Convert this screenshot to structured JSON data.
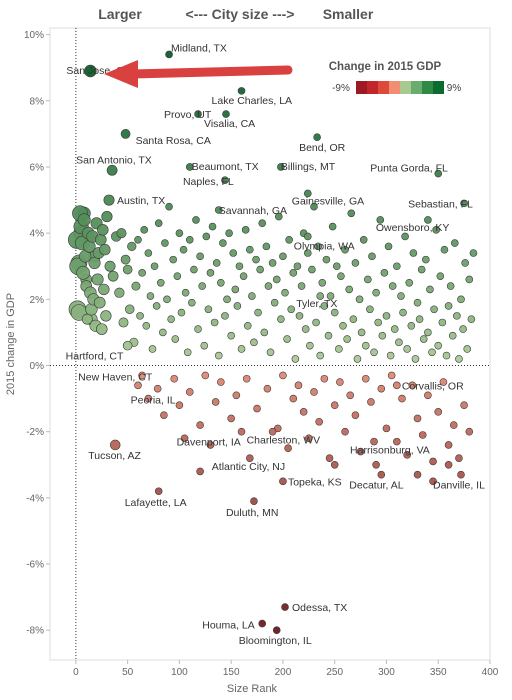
{
  "header": {
    "left": "Larger",
    "middle": "<---  City size  --->",
    "right": "Smaller"
  },
  "legend": {
    "title": "Change in 2015 GDP",
    "min_label": "-9%",
    "max_label": "9%",
    "colors": [
      "#9e1a22",
      "#c2262c",
      "#de4a3a",
      "#f08d72",
      "#a8c98f",
      "#6aac6e",
      "#2f8a46",
      "#0e6b2f"
    ]
  },
  "chart_data": {
    "type": "scatter",
    "xlabel": "Size Rank",
    "ylabel": "2015 change in GDP",
    "xlim": [
      -25,
      400
    ],
    "ylim": [
      -8.9,
      10.2
    ],
    "x_ticks": [
      0,
      50,
      100,
      150,
      200,
      250,
      300,
      350,
      400
    ],
    "x_tick_labels": [
      "0",
      "50",
      "100",
      "150",
      "200",
      "250",
      "300",
      "350",
      "400"
    ],
    "y_ticks": [
      10,
      8,
      6,
      4,
      2,
      0,
      -2,
      -4,
      -6,
      -8
    ],
    "y_tick_labels": [
      "10%",
      "8%",
      "6%",
      "4%",
      "2%",
      "0%",
      "-2%",
      "-4%",
      "-6%",
      "-8%"
    ],
    "reference_lines": {
      "x": 0,
      "y": 0
    },
    "labeled_points": [
      {
        "label": "San Jose, CA",
        "x": 14,
        "y": 8.9
      },
      {
        "label": "Midland, TX",
        "x": 90,
        "y": 9.4
      },
      {
        "label": "Lake Charles, LA",
        "x": 160,
        "y": 8.3
      },
      {
        "label": "Provo, UT",
        "x": 118,
        "y": 7.6
      },
      {
        "label": "Visalia, CA",
        "x": 145,
        "y": 7.6
      },
      {
        "label": "Santa Rosa, CA",
        "x": 48,
        "y": 7.0
      },
      {
        "label": "San Antonio, TX",
        "x": 35,
        "y": 5.9
      },
      {
        "label": "Beaumont, TX",
        "x": 110,
        "y": 6.0
      },
      {
        "label": "Bend, OR",
        "x": 233,
        "y": 6.9
      },
      {
        "label": "Billings, MT",
        "x": 198,
        "y": 6.0
      },
      {
        "label": "Punta Gorda, FL",
        "x": 350,
        "y": 5.8
      },
      {
        "label": "Naples, FL",
        "x": 144,
        "y": 5.6
      },
      {
        "label": "Gainesville, GA",
        "x": 224,
        "y": 5.2
      },
      {
        "label": "Austin, TX",
        "x": 32,
        "y": 5.0
      },
      {
        "label": "Sebastian, FL",
        "x": 375,
        "y": 4.9
      },
      {
        "label": "Savannah, GA",
        "x": 138,
        "y": 4.7
      },
      {
        "label": "Owensboro, KY",
        "x": 340,
        "y": 4.4
      },
      {
        "label": "Olympia, WA",
        "x": 224,
        "y": 3.9
      },
      {
        "label": "Tyler, TX",
        "x": 236,
        "y": 2.1
      },
      {
        "label": "Hartford, CT",
        "x": 50,
        "y": 0.6
      },
      {
        "label": "New Haven, CT",
        "x": 64,
        "y": -0.3
      },
      {
        "label": "Corvallis, OR",
        "x": 310,
        "y": -0.6
      },
      {
        "label": "Peoria, IL",
        "x": 79,
        "y": -0.7
      },
      {
        "label": "Davenport, IA",
        "x": 105,
        "y": -2.2
      },
      {
        "label": "Charleston, WV",
        "x": 190,
        "y": -2.0
      },
      {
        "label": "Harrisonburg, VA",
        "x": 288,
        "y": -2.3
      },
      {
        "label": "Tucson, AZ",
        "x": 38,
        "y": -2.4
      },
      {
        "label": "Atlantic City, NJ",
        "x": 168,
        "y": -2.8
      },
      {
        "label": "Topeka, KS",
        "x": 200,
        "y": -3.5
      },
      {
        "label": "Decatur, AL",
        "x": 295,
        "y": -3.3
      },
      {
        "label": "Danville, IL",
        "x": 372,
        "y": -3.3
      },
      {
        "label": "Lafayette, LA",
        "x": 80,
        "y": -3.8
      },
      {
        "label": "Duluth, MN",
        "x": 172,
        "y": -4.1
      },
      {
        "label": "Odessa, TX",
        "x": 202,
        "y": -7.3
      },
      {
        "label": "Houma, LA",
        "x": 180,
        "y": -7.8
      },
      {
        "label": "Bloomington, IL",
        "x": 194,
        "y": -8.0
      }
    ],
    "other_points": [
      [
        1,
        3.8
      ],
      [
        2,
        3.0
      ],
      [
        3,
        1.6
      ],
      [
        4,
        4.6
      ],
      [
        5,
        4.2
      ],
      [
        6,
        3.7
      ],
      [
        7,
        2.8
      ],
      [
        8,
        4.4
      ],
      [
        9,
        3.3
      ],
      [
        10,
        2.4
      ],
      [
        11,
        1.4
      ],
      [
        12,
        4.0
      ],
      [
        13,
        3.6
      ],
      [
        14,
        2.2
      ],
      [
        15,
        1.7
      ],
      [
        16,
        3.9
      ],
      [
        17,
        2.0
      ],
      [
        18,
        3.1
      ],
      [
        19,
        1.2
      ],
      [
        20,
        4.3
      ],
      [
        21,
        2.6
      ],
      [
        22,
        3.4
      ],
      [
        23,
        1.9
      ],
      [
        24,
        3.8
      ],
      [
        25,
        1.1
      ],
      [
        26,
        4.1
      ],
      [
        27,
        2.3
      ],
      [
        28,
        3.5
      ],
      [
        29,
        1.5
      ],
      [
        30,
        4.5
      ],
      [
        33,
        3.0
      ],
      [
        36,
        2.7
      ],
      [
        39,
        3.9
      ],
      [
        42,
        2.2
      ],
      [
        44,
        4.0
      ],
      [
        46,
        1.3
      ],
      [
        48,
        3.2
      ],
      [
        50,
        2.9
      ],
      [
        52,
        1.7
      ],
      [
        54,
        3.6
      ],
      [
        56,
        0.7
      ],
      [
        58,
        2.4
      ],
      [
        60,
        3.8
      ],
      [
        62,
        1.5
      ],
      [
        64,
        2.8
      ],
      [
        66,
        4.1
      ],
      [
        68,
        1.2
      ],
      [
        70,
        3.4
      ],
      [
        72,
        2.1
      ],
      [
        74,
        0.5
      ],
      [
        76,
        3.0
      ],
      [
        78,
        1.8
      ],
      [
        80,
        4.3
      ],
      [
        82,
        2.5
      ],
      [
        84,
        1.0
      ],
      [
        86,
        3.7
      ],
      [
        88,
        2.0
      ],
      [
        90,
        4.8
      ],
      [
        92,
        1.4
      ],
      [
        94,
        3.2
      ],
      [
        96,
        0.8
      ],
      [
        98,
        2.7
      ],
      [
        100,
        4.0
      ],
      [
        102,
        1.6
      ],
      [
        104,
        3.5
      ],
      [
        106,
        2.2
      ],
      [
        108,
        0.4
      ],
      [
        110,
        3.8
      ],
      [
        112,
        1.9
      ],
      [
        114,
        2.9
      ],
      [
        116,
        4.4
      ],
      [
        118,
        1.1
      ],
      [
        120,
        3.3
      ],
      [
        122,
        2.4
      ],
      [
        124,
        0.6
      ],
      [
        126,
        3.9
      ],
      [
        128,
        1.7
      ],
      [
        130,
        2.8
      ],
      [
        132,
        4.2
      ],
      [
        134,
        1.3
      ],
      [
        136,
        3.1
      ],
      [
        138,
        0.3
      ],
      [
        140,
        2.5
      ],
      [
        142,
        3.7
      ],
      [
        144,
        1.5
      ],
      [
        146,
        2.0
      ],
      [
        148,
        4.0
      ],
      [
        150,
        0.9
      ],
      [
        152,
        3.4
      ],
      [
        154,
        2.3
      ],
      [
        156,
        1.8
      ],
      [
        158,
        3.0
      ],
      [
        160,
        0.5
      ],
      [
        162,
        2.7
      ],
      [
        164,
        4.1
      ],
      [
        166,
        1.2
      ],
      [
        168,
        3.5
      ],
      [
        170,
        2.1
      ],
      [
        172,
        0.7
      ],
      [
        174,
        3.2
      ],
      [
        176,
        1.6
      ],
      [
        178,
        2.9
      ],
      [
        180,
        4.3
      ],
      [
        182,
        1.0
      ],
      [
        184,
        3.6
      ],
      [
        186,
        2.4
      ],
      [
        188,
        0.4
      ],
      [
        190,
        3.1
      ],
      [
        192,
        1.9
      ],
      [
        194,
        2.6
      ],
      [
        196,
        4.5
      ],
      [
        198,
        1.4
      ],
      [
        200,
        3.3
      ],
      [
        202,
        2.2
      ],
      [
        204,
        0.8
      ],
      [
        206,
        3.8
      ],
      [
        208,
        1.7
      ],
      [
        210,
        2.8
      ],
      [
        212,
        0.2
      ],
      [
        214,
        3.0
      ],
      [
        216,
        1.5
      ],
      [
        218,
        2.4
      ],
      [
        220,
        4.0
      ],
      [
        222,
        1.1
      ],
      [
        224,
        3.4
      ],
      [
        226,
        0.6
      ],
      [
        228,
        2.9
      ],
      [
        230,
        4.8
      ],
      [
        232,
        1.3
      ],
      [
        234,
        3.6
      ],
      [
        236,
        0.3
      ],
      [
        238,
        2.5
      ],
      [
        240,
        1.8
      ],
      [
        242,
        3.2
      ],
      [
        244,
        0.9
      ],
      [
        246,
        2.1
      ],
      [
        248,
        4.2
      ],
      [
        250,
        1.6
      ],
      [
        252,
        3.0
      ],
      [
        254,
        0.5
      ],
      [
        256,
        2.7
      ],
      [
        258,
        1.2
      ],
      [
        260,
        3.5
      ],
      [
        262,
        0.8
      ],
      [
        264,
        2.3
      ],
      [
        266,
        4.6
      ],
      [
        268,
        1.4
      ],
      [
        270,
        3.1
      ],
      [
        272,
        0.2
      ],
      [
        274,
        2.0
      ],
      [
        276,
        1.0
      ],
      [
        278,
        3.8
      ],
      [
        280,
        0.6
      ],
      [
        282,
        2.6
      ],
      [
        284,
        1.7
      ],
      [
        286,
        3.3
      ],
      [
        288,
        0.4
      ],
      [
        290,
        2.2
      ],
      [
        292,
        1.3
      ],
      [
        294,
        4.4
      ],
      [
        296,
        0.9
      ],
      [
        298,
        2.8
      ],
      [
        300,
        1.5
      ],
      [
        302,
        3.6
      ],
      [
        304,
        0.3
      ],
      [
        306,
        2.4
      ],
      [
        308,
        1.1
      ],
      [
        310,
        3.0
      ],
      [
        312,
        0.7
      ],
      [
        314,
        2.1
      ],
      [
        316,
        1.6
      ],
      [
        318,
        3.9
      ],
      [
        320,
        0.5
      ],
      [
        322,
        2.5
      ],
      [
        324,
        1.2
      ],
      [
        326,
        3.4
      ],
      [
        328,
        0.2
      ],
      [
        330,
        1.9
      ],
      [
        332,
        1.4
      ],
      [
        334,
        2.9
      ],
      [
        336,
        0.8
      ],
      [
        338,
        3.2
      ],
      [
        340,
        1.0
      ],
      [
        342,
        2.3
      ],
      [
        344,
        0.4
      ],
      [
        346,
        1.7
      ],
      [
        348,
        4.1
      ],
      [
        350,
        0.6
      ],
      [
        352,
        2.7
      ],
      [
        354,
        1.3
      ],
      [
        356,
        3.5
      ],
      [
        358,
        0.3
      ],
      [
        360,
        1.8
      ],
      [
        362,
        2.4
      ],
      [
        364,
        0.9
      ],
      [
        366,
        3.7
      ],
      [
        368,
        1.5
      ],
      [
        370,
        0.2
      ],
      [
        372,
        2.0
      ],
      [
        374,
        1.1
      ],
      [
        376,
        3.1
      ],
      [
        378,
        0.5
      ],
      [
        380,
        2.6
      ],
      [
        382,
        1.4
      ],
      [
        384,
        3.4
      ],
      [
        60,
        -0.6
      ],
      [
        70,
        -1.0
      ],
      [
        85,
        -1.5
      ],
      [
        95,
        -0.4
      ],
      [
        100,
        -1.2
      ],
      [
        110,
        -0.8
      ],
      [
        120,
        -1.8
      ],
      [
        125,
        -0.3
      ],
      [
        130,
        -2.4
      ],
      [
        135,
        -1.1
      ],
      [
        140,
        -0.5
      ],
      [
        150,
        -1.6
      ],
      [
        155,
        -0.9
      ],
      [
        160,
        -2.0
      ],
      [
        165,
        -0.4
      ],
      [
        175,
        -1.3
      ],
      [
        185,
        -0.7
      ],
      [
        195,
        -1.9
      ],
      [
        200,
        -0.3
      ],
      [
        205,
        -2.5
      ],
      [
        210,
        -1.0
      ],
      [
        215,
        -0.6
      ],
      [
        220,
        -1.4
      ],
      [
        225,
        -2.2
      ],
      [
        230,
        -0.8
      ],
      [
        235,
        -1.7
      ],
      [
        240,
        -0.4
      ],
      [
        245,
        -2.8
      ],
      [
        250,
        -1.2
      ],
      [
        255,
        -0.5
      ],
      [
        260,
        -2.0
      ],
      [
        265,
        -0.9
      ],
      [
        270,
        -1.5
      ],
      [
        275,
        -2.6
      ],
      [
        280,
        -0.4
      ],
      [
        285,
        -1.1
      ],
      [
        290,
        -3.0
      ],
      [
        295,
        -0.7
      ],
      [
        300,
        -1.9
      ],
      [
        305,
        -0.3
      ],
      [
        310,
        -2.3
      ],
      [
        315,
        -1.0
      ],
      [
        320,
        -2.7
      ],
      [
        325,
        -0.6
      ],
      [
        330,
        -1.6
      ],
      [
        335,
        -2.1
      ],
      [
        340,
        -0.9
      ],
      [
        345,
        -2.9
      ],
      [
        350,
        -1.4
      ],
      [
        355,
        -0.5
      ],
      [
        360,
        -2.4
      ],
      [
        365,
        -1.8
      ],
      [
        370,
        -2.8
      ],
      [
        375,
        -1.2
      ],
      [
        380,
        -2.0
      ],
      [
        330,
        -3.3
      ],
      [
        360,
        -3.0
      ],
      [
        345,
        -3.5
      ],
      [
        250,
        -3.0
      ],
      [
        120,
        -3.2
      ]
    ]
  }
}
